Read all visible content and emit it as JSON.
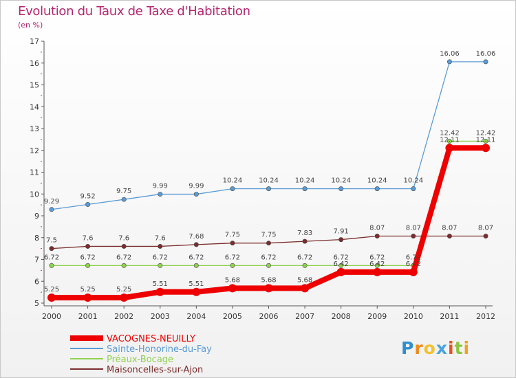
{
  "title": "Evolution du Taux de Taxe d'Habitation",
  "subtitle": "(en %)",
  "logo": {
    "letters": [
      "P",
      "r",
      "o",
      "x",
      "i",
      "t",
      "i"
    ],
    "colors": [
      "#2e8fcf",
      "#f08a1a",
      "#f2c12e",
      "#4ba3e0",
      "#e8521f",
      "#8cc63f",
      "#f2a21e"
    ]
  },
  "chart_data": {
    "type": "line",
    "x": [
      "2000",
      "2001",
      "2002",
      "2003",
      "2004",
      "2005",
      "2006",
      "2007",
      "2008",
      "2009",
      "2010",
      "2011",
      "2012"
    ],
    "ylim": [
      5,
      17
    ],
    "yticks": [
      5,
      6,
      7,
      8,
      9,
      10,
      11,
      12,
      13,
      14,
      15,
      16,
      17
    ],
    "grid": false,
    "legend_position": "bottom-left",
    "series": [
      {
        "name": "VACOGNES-NEUILLY",
        "color": "#ee0000",
        "values": [
          5.25,
          5.25,
          5.25,
          5.51,
          5.51,
          5.68,
          5.68,
          5.68,
          6.42,
          6.42,
          6.42,
          12.11,
          12.11
        ],
        "labels": [
          "5.25",
          "5.25",
          "5.25",
          "5.51",
          "5.51",
          "5.68",
          "5.68",
          "5.68",
          "6.42",
          "6.42",
          "6.42",
          "12.11",
          "12.11"
        ]
      },
      {
        "name": "Sainte-Honorine-du-Fay",
        "color": "#5b9bd5",
        "values": [
          9.29,
          9.52,
          9.75,
          9.99,
          9.99,
          10.24,
          10.24,
          10.24,
          10.24,
          10.24,
          10.24,
          16.06,
          16.06
        ],
        "labels": [
          "9.29",
          "9.52",
          "9.75",
          "9.99",
          "9.99",
          "10.24",
          "10.24",
          "10.24",
          "10.24",
          "10.24",
          "10.24",
          "16.06",
          "16.06"
        ]
      },
      {
        "name": "Préaux-Bocage",
        "color": "#8fd14f",
        "values": [
          6.72,
          6.72,
          6.72,
          6.72,
          6.72,
          6.72,
          6.72,
          6.72,
          6.72,
          6.72,
          6.72,
          12.42,
          12.42
        ],
        "labels": [
          "6.72",
          "6.72",
          "6.72",
          "6.72",
          "6.72",
          "6.72",
          "6.72",
          "6.72",
          "6.72",
          "6.72",
          "6.72",
          "12.42",
          "12.42"
        ]
      },
      {
        "name": "Maisoncelles-sur-Ajon",
        "color": "#7b2c2c",
        "values": [
          7.5,
          7.6,
          7.6,
          7.6,
          7.68,
          7.75,
          7.75,
          7.83,
          7.91,
          8.07,
          8.07,
          8.07,
          8.07
        ],
        "labels": [
          "7.5",
          "7.6",
          "7.6",
          "7.6",
          "7.68",
          "7.75",
          "7.75",
          "7.83",
          "7.91",
          "8.07",
          "8.07",
          "8.07",
          "8.07"
        ]
      }
    ]
  }
}
